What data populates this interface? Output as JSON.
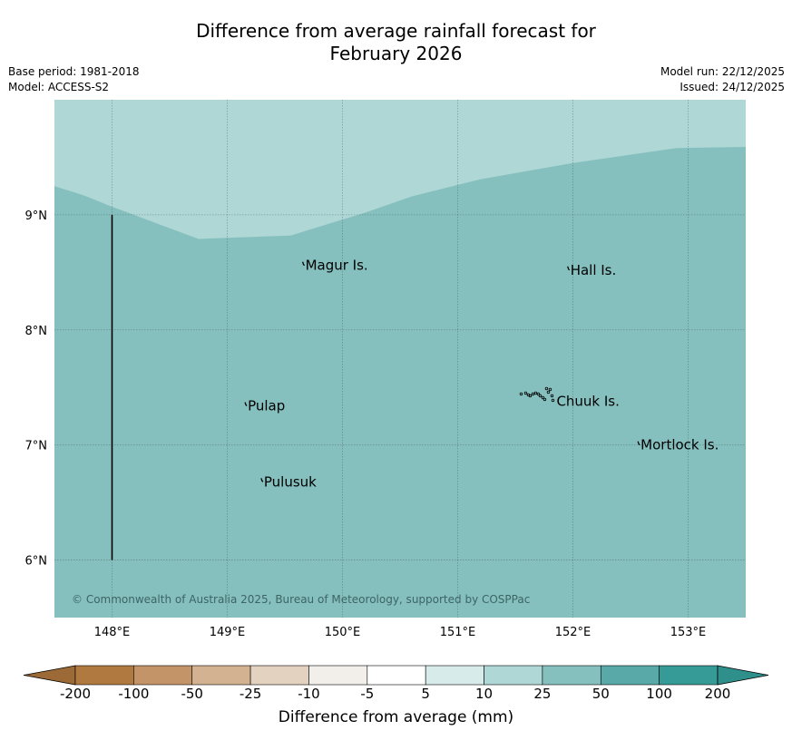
{
  "title_line1": "Difference from average rainfall forecast for",
  "title_line2": "February 2026",
  "base_period": "Base period: 1981-2018",
  "model": "Model: ACCESS-S2",
  "model_run": "Model run: 22/12/2025",
  "issued": "Issued: 24/12/2025",
  "copyright": "© Commonwealth of Australia 2025, Bureau of Meteorology, supported by COSPPac",
  "map": {
    "lon_min": 147.5,
    "lon_max": 153.5,
    "lat_min": 5.5,
    "lat_max": 10.0,
    "lon_ticks": [
      148,
      149,
      150,
      151,
      152,
      153
    ],
    "lon_tick_labels": [
      "148°E",
      "149°E",
      "150°E",
      "151°E",
      "152°E",
      "153°E"
    ],
    "lat_ticks": [
      9,
      8,
      7,
      6
    ],
    "lat_tick_labels": [
      "9°N",
      "8°N",
      "7°N",
      "6°N"
    ],
    "base_color": "#85c0bf",
    "upper_zone_color": "#aed7d6",
    "zones": [
      {
        "category": "10 to 25",
        "color": "#aed7d6",
        "region": "northern band"
      },
      {
        "category": "25 to 50",
        "color": "#85c0bf",
        "region": "rest of map"
      }
    ],
    "boundary_line": [
      [
        147.5,
        9.25
      ],
      [
        147.75,
        9.17
      ],
      [
        148.0,
        9.07
      ],
      [
        148.75,
        8.79
      ],
      [
        149.0,
        8.8
      ],
      [
        149.55,
        8.82
      ],
      [
        150.2,
        9.02
      ],
      [
        150.6,
        9.16
      ],
      [
        151.2,
        9.31
      ],
      [
        152.0,
        9.45
      ],
      [
        152.9,
        9.58
      ],
      [
        153.5,
        9.59
      ]
    ],
    "meridian_line": {
      "lon": 148.0,
      "lat_from": 6.0,
      "lat_to": 9.0
    },
    "places": [
      {
        "name": "Magur Is.",
        "lon": 149.67,
        "lat": 8.56
      },
      {
        "name": "Hall Is.",
        "lon": 151.97,
        "lat": 8.52
      },
      {
        "name": "Pulap",
        "lon": 149.17,
        "lat": 7.34
      },
      {
        "name": "Chuuk Is.",
        "lon": 151.85,
        "lat": 7.38
      },
      {
        "name": "Mortlock Is.",
        "lon": 152.58,
        "lat": 7.0
      },
      {
        "name": "Pulusuk",
        "lon": 149.31,
        "lat": 6.68
      }
    ]
  },
  "colorbar": {
    "ticks": [
      "-200",
      "-100",
      "-50",
      "-25",
      "-10",
      "-5",
      "5",
      "10",
      "25",
      "50",
      "100",
      "200"
    ],
    "colors": [
      "#b07940",
      "#c29467",
      "#d3b292",
      "#e4d2c0",
      "#f2efea",
      "#ffffff",
      "#d6ebea",
      "#aed7d6",
      "#85c0bf",
      "#58a9a7",
      "#369b97"
    ],
    "under_color": "#9c6a36",
    "over_color": "#2f8f8b",
    "label": "Difference from average (mm)"
  }
}
